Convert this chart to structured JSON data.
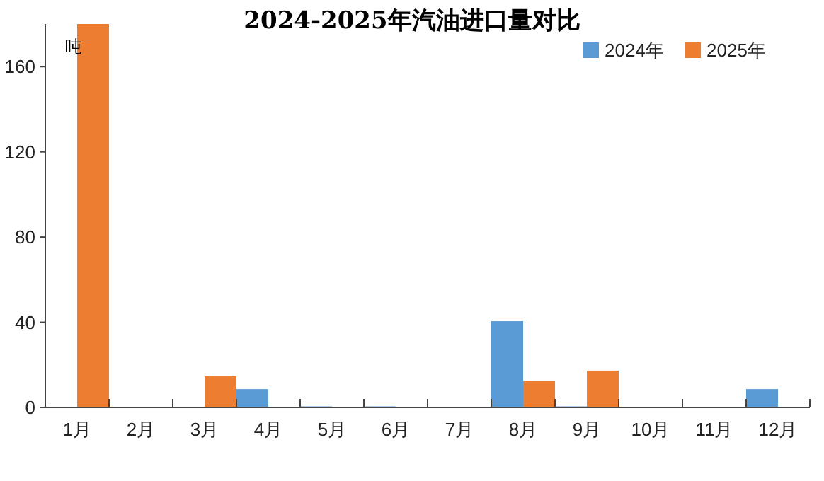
{
  "chart_data": {
    "type": "bar",
    "title": "2024-2025年汽油进口量对比",
    "ylabel": "吨",
    "categories": [
      "1月",
      "2月",
      "3月",
      "4月",
      "5月",
      "6月",
      "7月",
      "8月",
      "9月",
      "10月",
      "11月",
      "12月"
    ],
    "series": [
      {
        "name": "2024年",
        "color": "#5b9bd5",
        "values": [
          null,
          null,
          null,
          8.6,
          0.5,
          0.5,
          null,
          40.5,
          0.5,
          null,
          null,
          8.6
        ]
      },
      {
        "name": "2025年",
        "color": "#ed7d31",
        "values": [
          180,
          null,
          14.6,
          null,
          null,
          null,
          null,
          12.6,
          17.3,
          null,
          null,
          null
        ]
      }
    ],
    "ylim": [
      0,
      180
    ],
    "yticks": [
      0,
      40,
      80,
      120,
      160
    ],
    "legend": "top right"
  }
}
